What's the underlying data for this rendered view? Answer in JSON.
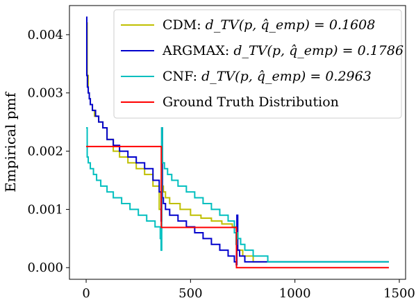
{
  "chart_data": {
    "type": "line",
    "title": "",
    "xlabel": "",
    "ylabel": "Empirical pmf",
    "xlim": [
      -80,
      1530
    ],
    "ylim": [
      -0.0002,
      0.0045
    ],
    "xticks": [
      0,
      500,
      1000,
      1500
    ],
    "xtick_labels": [
      "0",
      "500",
      "1000",
      "1500"
    ],
    "yticks": [
      0.0,
      0.001,
      0.002,
      0.003,
      0.004
    ],
    "ytick_labels": [
      "0.000",
      "0.001",
      "0.002",
      "0.003",
      "0.004"
    ],
    "grid": false,
    "legend_position": "top-right",
    "legend": [
      {
        "prefix": "CDM: ",
        "metric_label": "d_TV(p, q̂_emp) = 0.1608"
      },
      {
        "prefix": "ARGMAX: ",
        "metric_label": "d_TV(p, q̂_emp) = 0.1786"
      },
      {
        "prefix": "CNF: ",
        "metric_label": "d_TV(p, q̂_emp) = 0.2963"
      },
      {
        "prefix": "Ground Truth Distribution",
        "metric_label": ""
      }
    ],
    "series": [
      {
        "name": "CDM",
        "color": "#bfbf00",
        "x": [
          0,
          5,
          10,
          15,
          20,
          30,
          40,
          60,
          80,
          100,
          130,
          160,
          200,
          240,
          280,
          320,
          350,
          359,
          362,
          365,
          370,
          380,
          400,
          450,
          500,
          550,
          600,
          650,
          700,
          719,
          722,
          725,
          750,
          800,
          880,
          1000,
          1200,
          1450
        ],
        "y": [
          0.0042,
          0.0033,
          0.003,
          0.0029,
          0.0028,
          0.0027,
          0.0026,
          0.0025,
          0.0024,
          0.0022,
          0.002,
          0.0019,
          0.0018,
          0.0017,
          0.0016,
          0.0014,
          0.001,
          0.0008,
          0.0024,
          0.0014,
          0.0013,
          0.0012,
          0.0011,
          0.001,
          0.0009,
          0.00085,
          0.0008,
          0.00075,
          0.0007,
          0.00065,
          0.0006,
          0.0003,
          0.0002,
          0.0001,
          0.0001,
          0.0001,
          0.0001,
          0.0001
        ]
      },
      {
        "name": "ARGMAX",
        "color": "#0000cc",
        "x": [
          0,
          3,
          6,
          10,
          15,
          20,
          30,
          45,
          60,
          80,
          100,
          130,
          160,
          200,
          240,
          280,
          320,
          350,
          359,
          362,
          365,
          370,
          380,
          400,
          440,
          480,
          520,
          560,
          600,
          640,
          680,
          710,
          719,
          722,
          726,
          735,
          760,
          800,
          900,
          1200,
          1450
        ],
        "y": [
          0.0043,
          0.0033,
          0.0031,
          0.003,
          0.0029,
          0.0028,
          0.0027,
          0.0026,
          0.0025,
          0.0024,
          0.0022,
          0.0021,
          0.002,
          0.0019,
          0.0018,
          0.0017,
          0.0015,
          0.0013,
          0.0008,
          0.0024,
          0.0012,
          0.0011,
          0.001,
          0.0009,
          0.0008,
          0.0007,
          0.0006,
          0.0005,
          0.0004,
          0.0003,
          0.0002,
          0.0001,
          5e-05,
          0.0009,
          0.0003,
          0.0002,
          0.0001,
          0.0001,
          0.0001,
          0.0001,
          0.0001
        ]
      },
      {
        "name": "CNF",
        "color": "#00bfbf",
        "x": [
          0,
          5,
          10,
          20,
          35,
          50,
          70,
          100,
          130,
          170,
          210,
          250,
          290,
          330,
          355,
          359,
          362,
          365,
          375,
          390,
          410,
          440,
          480,
          520,
          560,
          600,
          640,
          680,
          710,
          718,
          722,
          727,
          740,
          760,
          800,
          860,
          870,
          1000,
          1450
        ],
        "y": [
          0.0024,
          0.0019,
          0.0018,
          0.0017,
          0.0016,
          0.0015,
          0.0014,
          0.0013,
          0.0012,
          0.0011,
          0.001,
          0.0009,
          0.0008,
          0.0007,
          0.0005,
          0.0003,
          0.0024,
          0.0018,
          0.0017,
          0.0016,
          0.0015,
          0.0014,
          0.0013,
          0.0012,
          0.0011,
          0.001,
          0.0009,
          0.0008,
          0.0006,
          0.0004,
          0.0006,
          0.0005,
          0.0004,
          0.0003,
          0.0002,
          0.0002,
          0.0001,
          0.0001,
          0.0001
        ]
      },
      {
        "name": "Ground Truth Distribution",
        "color": "#ff0000",
        "x": [
          0,
          360,
          360,
          720,
          720,
          1450
        ],
        "y": [
          0.00208,
          0.00208,
          0.00069,
          0.00069,
          0.0,
          0.0
        ]
      }
    ]
  }
}
